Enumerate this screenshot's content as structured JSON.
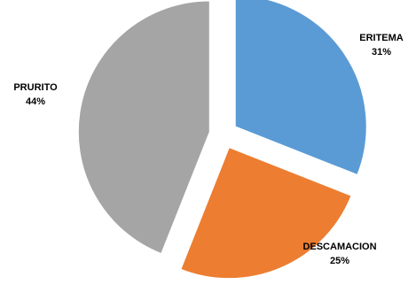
{
  "chart_data": {
    "type": "pie",
    "exploded": true,
    "slices": [
      {
        "label": "ERITEMA",
        "percent_label": "31%",
        "value": 31,
        "color": "#5B9BD5"
      },
      {
        "label": "DESCAMACION",
        "percent_label": "25%",
        "value": 25,
        "color": "#ED7D31"
      },
      {
        "label": "PRURITO",
        "percent_label": "44%",
        "value": 44,
        "color": "#A5A5A5"
      }
    ]
  }
}
